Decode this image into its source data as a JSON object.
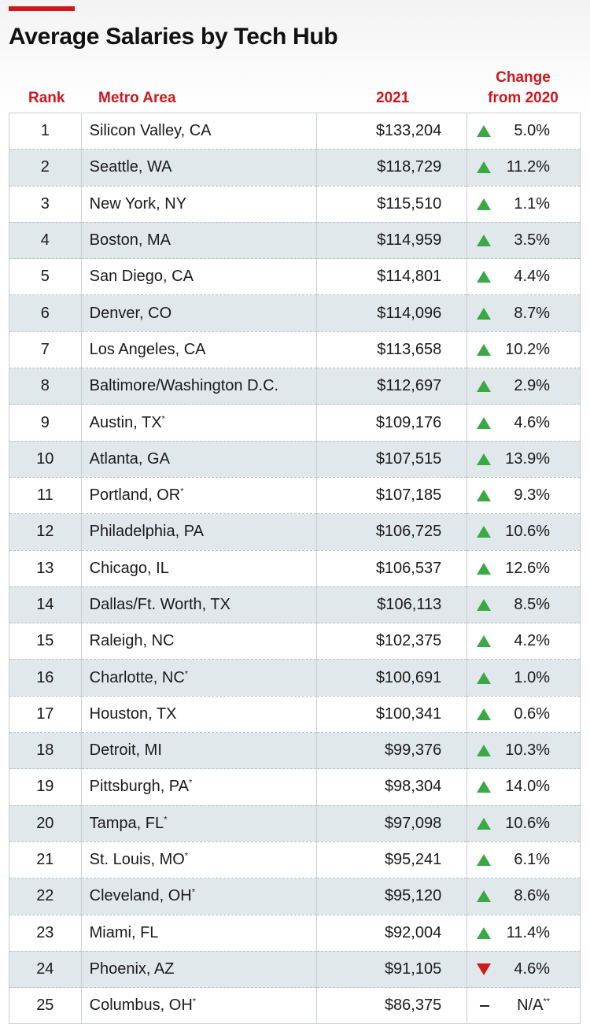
{
  "chart_data": {
    "type": "table",
    "title": "Average Salaries by Tech Hub",
    "columns": [
      "Rank",
      "Metro Area",
      "2021",
      "Change from 2020"
    ],
    "header": {
      "rank": "Rank",
      "metro": "Metro Area",
      "year": "2021",
      "change_line1": "Change",
      "change_line2": "from 2020"
    },
    "colors": {
      "accent": "#d0161d",
      "up": "#3aa845",
      "down": "#cf1a1a",
      "stripe": "#e1e8eb"
    },
    "rows": [
      {
        "rank": "1",
        "metro": "Silicon Valley, CA",
        "mark": "",
        "salary": "$133,204",
        "dir": "up",
        "change": "5.0%"
      },
      {
        "rank": "2",
        "metro": "Seattle, WA",
        "mark": "",
        "salary": "$118,729",
        "dir": "up",
        "change": "11.2%"
      },
      {
        "rank": "3",
        "metro": "New York, NY",
        "mark": "",
        "salary": "$115,510",
        "dir": "up",
        "change": "1.1%"
      },
      {
        "rank": "4",
        "metro": "Boston, MA",
        "mark": "",
        "salary": "$114,959",
        "dir": "up",
        "change": "3.5%"
      },
      {
        "rank": "5",
        "metro": "San Diego, CA",
        "mark": "",
        "salary": "$114,801",
        "dir": "up",
        "change": "4.4%"
      },
      {
        "rank": "6",
        "metro": "Denver, CO",
        "mark": "",
        "salary": "$114,096",
        "dir": "up",
        "change": "8.7%"
      },
      {
        "rank": "7",
        "metro": "Los Angeles, CA",
        "mark": "",
        "salary": "$113,658",
        "dir": "up",
        "change": "10.2%"
      },
      {
        "rank": "8",
        "metro": "Baltimore/Washington D.C.",
        "mark": "",
        "salary": "$112,697",
        "dir": "up",
        "change": "2.9%"
      },
      {
        "rank": "9",
        "metro": "Austin, TX",
        "mark": "*",
        "salary": "$109,176",
        "dir": "up",
        "change": "4.6%"
      },
      {
        "rank": "10",
        "metro": "Atlanta, GA",
        "mark": "",
        "salary": "$107,515",
        "dir": "up",
        "change": "13.9%"
      },
      {
        "rank": "11",
        "metro": "Portland, OR",
        "mark": "*",
        "salary": "$107,185",
        "dir": "up",
        "change": "9.3%"
      },
      {
        "rank": "12",
        "metro": "Philadelphia, PA",
        "mark": "",
        "salary": "$106,725",
        "dir": "up",
        "change": "10.6%"
      },
      {
        "rank": "13",
        "metro": "Chicago, IL",
        "mark": "",
        "salary": "$106,537",
        "dir": "up",
        "change": "12.6%"
      },
      {
        "rank": "14",
        "metro": "Dallas/Ft. Worth, TX",
        "mark": "",
        "salary": "$106,113",
        "dir": "up",
        "change": "8.5%"
      },
      {
        "rank": "15",
        "metro": "Raleigh, NC",
        "mark": "",
        "salary": "$102,375",
        "dir": "up",
        "change": "4.2%"
      },
      {
        "rank": "16",
        "metro": "Charlotte, NC",
        "mark": "*",
        "salary": "$100,691",
        "dir": "up",
        "change": "1.0%"
      },
      {
        "rank": "17",
        "metro": "Houston, TX",
        "mark": "",
        "salary": "$100,341",
        "dir": "up",
        "change": "0.6%"
      },
      {
        "rank": "18",
        "metro": "Detroit, MI",
        "mark": "",
        "salary": "$99,376",
        "dir": "up",
        "change": "10.3%"
      },
      {
        "rank": "19",
        "metro": "Pittsburgh, PA",
        "mark": "*",
        "salary": "$98,304",
        "dir": "up",
        "change": "14.0%"
      },
      {
        "rank": "20",
        "metro": "Tampa, FL",
        "mark": "*",
        "salary": "$97,098",
        "dir": "up",
        "change": "10.6%"
      },
      {
        "rank": "21",
        "metro": "St. Louis, MO",
        "mark": "*",
        "salary": "$95,241",
        "dir": "up",
        "change": "6.1%"
      },
      {
        "rank": "22",
        "metro": "Cleveland, OH",
        "mark": "*",
        "salary": "$95,120",
        "dir": "up",
        "change": "8.6%"
      },
      {
        "rank": "23",
        "metro": "Miami, FL",
        "mark": "",
        "salary": "$92,004",
        "dir": "up",
        "change": "11.4%"
      },
      {
        "rank": "24",
        "metro": "Phoenix, AZ",
        "mark": "",
        "salary": "$91,105",
        "dir": "down",
        "change": "4.6%"
      },
      {
        "rank": "25",
        "metro": "Columbus, OH",
        "mark": "*",
        "salary": "$86,375",
        "dir": "na",
        "change": "N/A",
        "change_mark": "**"
      }
    ]
  }
}
